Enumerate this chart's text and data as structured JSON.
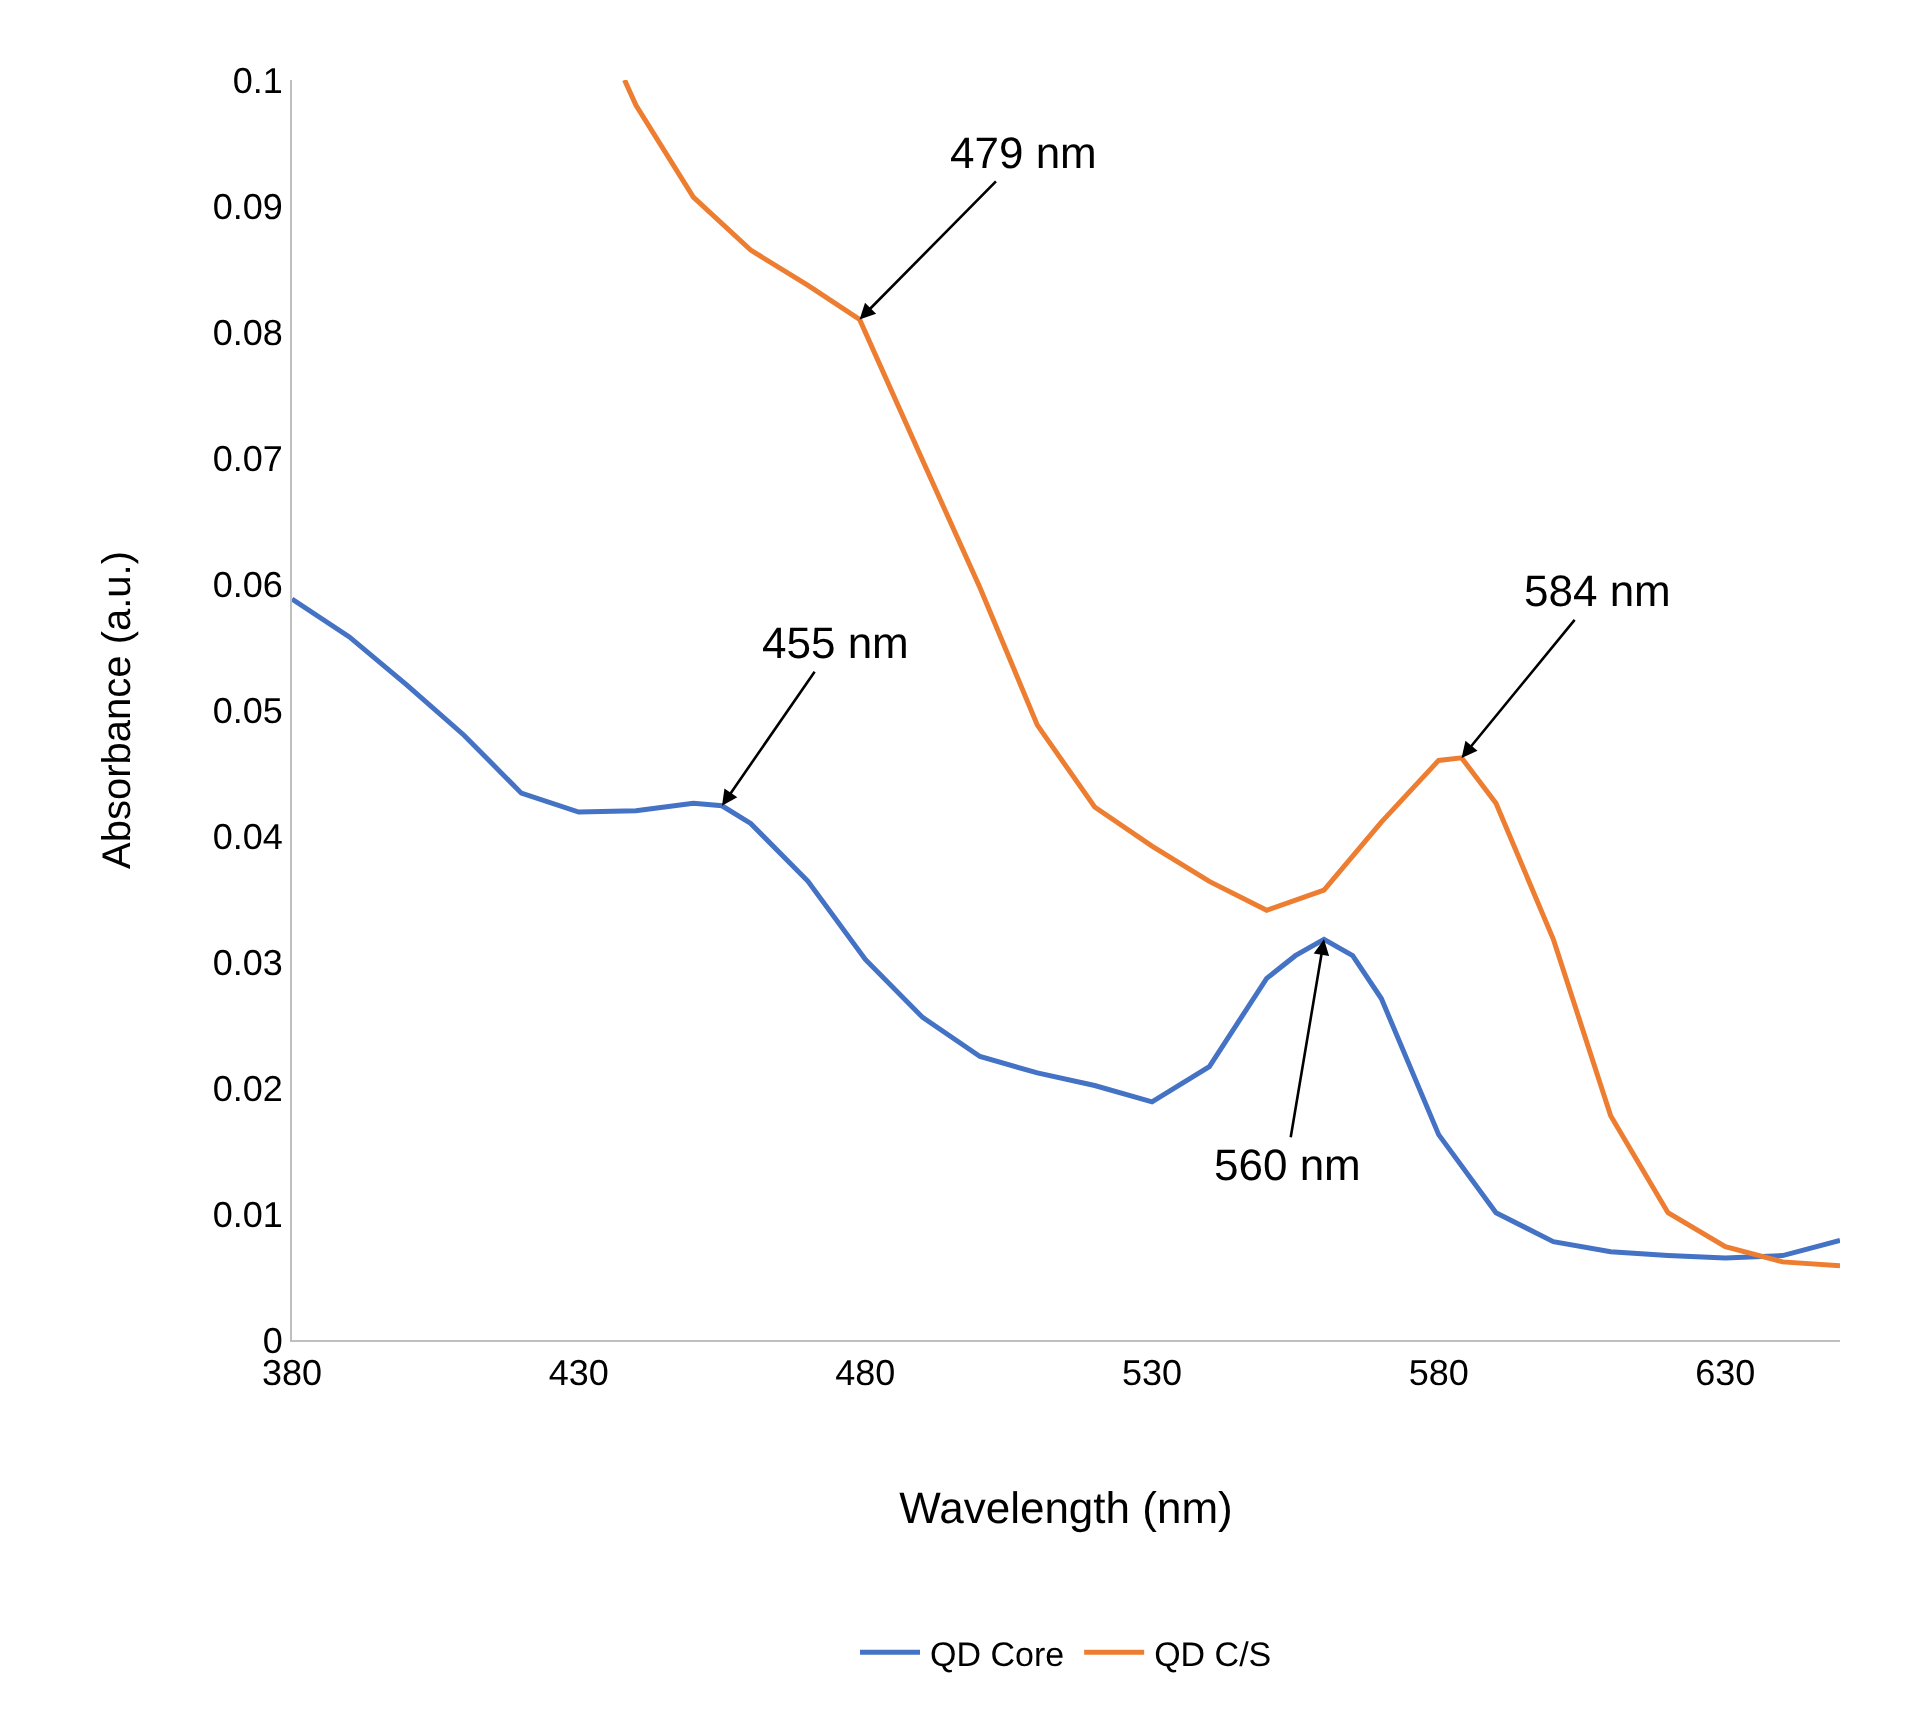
{
  "chart_data": {
    "type": "line",
    "xlabel": "Wavelength (nm)",
    "ylabel": "Absorbance (a.u.)",
    "xlim": [
      380,
      650
    ],
    "xticks": [
      380,
      430,
      480,
      530,
      580,
      630
    ],
    "ylim": [
      0,
      0.1
    ],
    "yticks": [
      0,
      0.01,
      0.02,
      0.03,
      0.04,
      0.05,
      0.06,
      0.07,
      0.08,
      0.09,
      0.1
    ],
    "grid": false,
    "legend": "bottom",
    "marker": "none",
    "line_style": "solid",
    "series": [
      {
        "name": "QD Core",
        "color": "#4472c4",
        "x": [
          380,
          390,
          400,
          410,
          420,
          430,
          440,
          450,
          455,
          460,
          470,
          480,
          490,
          500,
          510,
          520,
          530,
          540,
          550,
          555,
          560,
          565,
          570,
          580,
          590,
          600,
          610,
          620,
          630,
          640,
          650
        ],
        "values": [
          0.0588,
          0.0558,
          0.052,
          0.048,
          0.0434,
          0.0419,
          0.042,
          0.0426,
          0.0424,
          0.041,
          0.0364,
          0.0302,
          0.0256,
          0.0225,
          0.0212,
          0.0202,
          0.0189,
          0.0217,
          0.0287,
          0.0305,
          0.0318,
          0.0305,
          0.0271,
          0.0163,
          0.0101,
          0.0078,
          0.007,
          0.0067,
          0.0065,
          0.0067,
          0.0079
        ]
      },
      {
        "name": "QD C/S",
        "color": "#ed7d31",
        "x": [
          438,
          440,
          450,
          460,
          470,
          479,
          490,
          500,
          510,
          520,
          530,
          540,
          550,
          560,
          570,
          580,
          584,
          590,
          600,
          610,
          620,
          630,
          640,
          650
        ],
        "values": [
          0.1,
          0.098,
          0.0907,
          0.0865,
          0.0837,
          0.081,
          0.0698,
          0.0597,
          0.0488,
          0.0423,
          0.0392,
          0.0364,
          0.0341,
          0.0357,
          0.0411,
          0.046,
          0.0462,
          0.0426,
          0.0318,
          0.0178,
          0.0101,
          0.0074,
          0.0062,
          0.0059
        ]
      }
    ],
    "annotations": [
      {
        "text": "479 nm",
        "x": 479,
        "y": 0.081
      },
      {
        "text": "455 nm",
        "x": 455,
        "y": 0.0424
      },
      {
        "text": "584 nm",
        "x": 584,
        "y": 0.0462
      },
      {
        "text": "560 nm",
        "x": 560,
        "y": 0.0318
      }
    ]
  }
}
